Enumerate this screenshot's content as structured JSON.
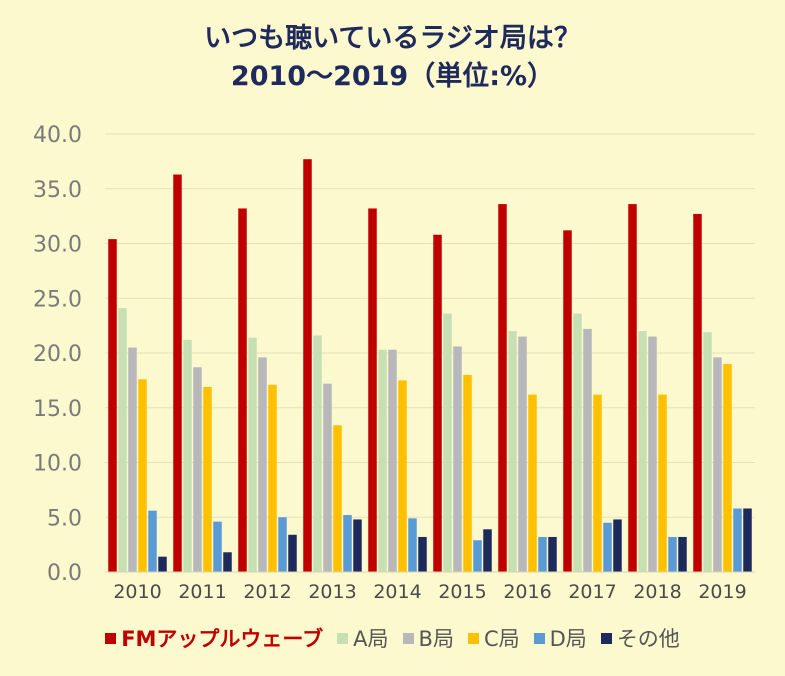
{
  "chart_data": {
    "type": "bar",
    "title": [
      "いつも聴いているラジオ局は？",
      "2010～2019（単位:%）"
    ],
    "categories": [
      "2010",
      "2011",
      "2012",
      "2013",
      "2014",
      "2015",
      "2016",
      "2017",
      "2018",
      "2019"
    ],
    "ylim": [
      0,
      40
    ],
    "yticks": [
      "0.0",
      "5.0",
      "10.0",
      "15.0",
      "20.0",
      "25.0",
      "30.0",
      "35.0",
      "40.0"
    ],
    "grid": true,
    "legend_position": "bottom",
    "series": [
      {
        "name": "FMアップルウェーブ",
        "color": "#c00000",
        "values": [
          30.4,
          36.3,
          33.2,
          37.7,
          33.2,
          30.8,
          33.6,
          31.2,
          33.6,
          32.7
        ]
      },
      {
        "name": "A局",
        "color": "#c6e0b4",
        "values": [
          24.1,
          21.2,
          21.4,
          21.6,
          20.3,
          23.6,
          22.0,
          23.6,
          22.0,
          21.9
        ]
      },
      {
        "name": "B局",
        "color": "#b8b8bc",
        "values": [
          20.5,
          18.7,
          19.6,
          17.2,
          20.3,
          20.6,
          21.5,
          22.2,
          21.5,
          19.6
        ]
      },
      {
        "name": "C局",
        "color": "#ffc000",
        "values": [
          17.6,
          16.9,
          17.1,
          13.4,
          17.5,
          18.0,
          16.2,
          16.2,
          16.2,
          19.0
        ]
      },
      {
        "name": "D局",
        "color": "#5b9bd5",
        "values": [
          5.6,
          4.6,
          5.0,
          5.2,
          4.9,
          2.9,
          3.2,
          4.5,
          3.2,
          5.8
        ]
      },
      {
        "name": "その他",
        "color": "#1f2a5c",
        "values": [
          1.4,
          1.8,
          3.4,
          4.8,
          3.2,
          3.9,
          3.2,
          4.8,
          3.2,
          5.8
        ]
      }
    ]
  }
}
